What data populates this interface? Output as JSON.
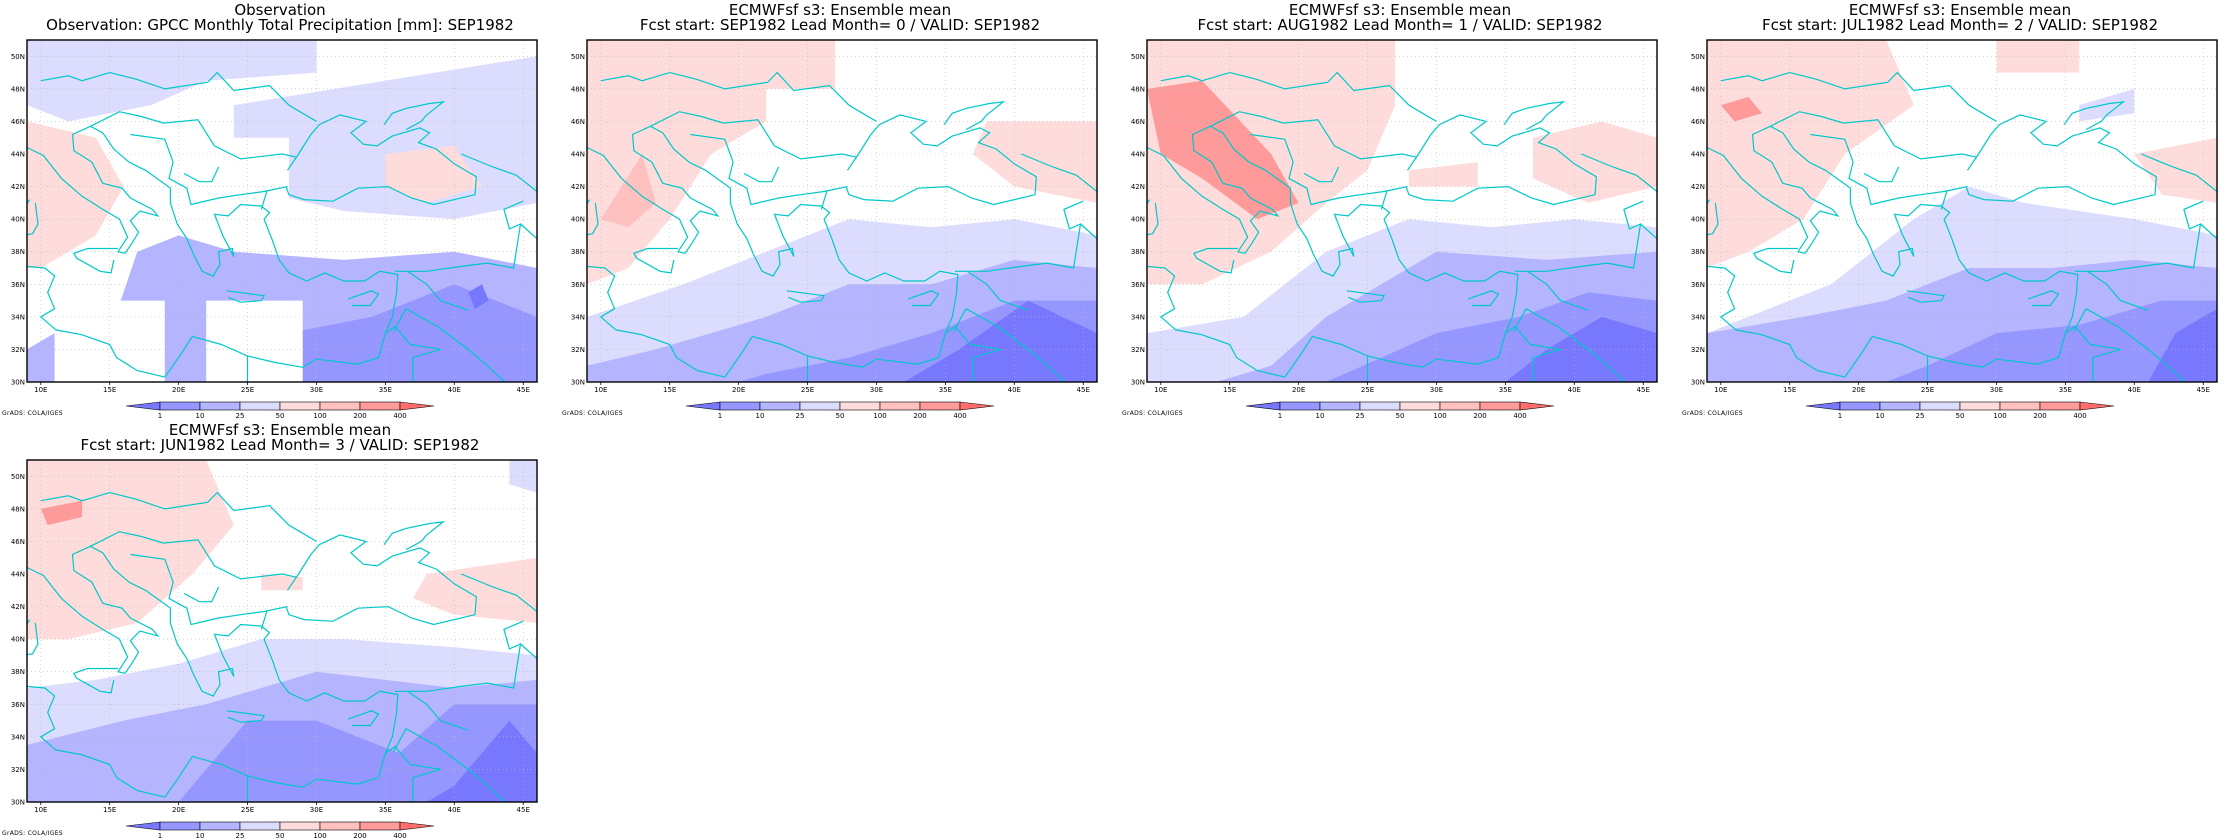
{
  "colors": {
    "ocean_bg": "#ffffff",
    "coast": "#00c8c8",
    "blue_levels": [
      "#dcdcff",
      "#b4b4ff",
      "#9696ff",
      "#7878ff"
    ],
    "red_levels": [
      "#ffdcdc",
      "#ffc0c0",
      "#ff9a9a",
      "#ff6e6e"
    ]
  },
  "axes": {
    "lon_ticks": [
      "10E",
      "15E",
      "20E",
      "25E",
      "30E",
      "35E",
      "40E",
      "45E"
    ],
    "lat_ticks": [
      "30N",
      "32N",
      "34N",
      "36N",
      "38N",
      "40N",
      "42N",
      "44N",
      "46N",
      "48N",
      "50N"
    ],
    "lon_range": [
      9,
      46
    ],
    "lat_range": [
      30,
      51
    ]
  },
  "colorbar": {
    "levels": [
      "1",
      "10",
      "25",
      "50",
      "100",
      "200",
      "400"
    ]
  },
  "credit_text": "GrADS: COLA/IGES",
  "panels": [
    {
      "title_line1": "Observation",
      "title_line2": "Observation: GPCC Monthly Total Precipitation [mm]: SEP1982"
    },
    {
      "title_line1": "ECMWFsf s3: Ensemble mean",
      "title_line2": "Fcst start: SEP1982  Lead Month= 0 / VALID: SEP1982"
    },
    {
      "title_line1": "ECMWFsf s3: Ensemble mean",
      "title_line2": "Fcst start: AUG1982  Lead Month= 1 / VALID: SEP1982"
    },
    {
      "title_line1": "ECMWFsf s3: Ensemble mean",
      "title_line2": "Fcst start: JUL1982  Lead Month= 2 / VALID: SEP1982"
    },
    {
      "title_line1": "ECMWFsf s3: Ensemble mean",
      "title_line2": "Fcst start: JUN1982  Lead Month= 3 / VALID: SEP1982"
    }
  ]
}
